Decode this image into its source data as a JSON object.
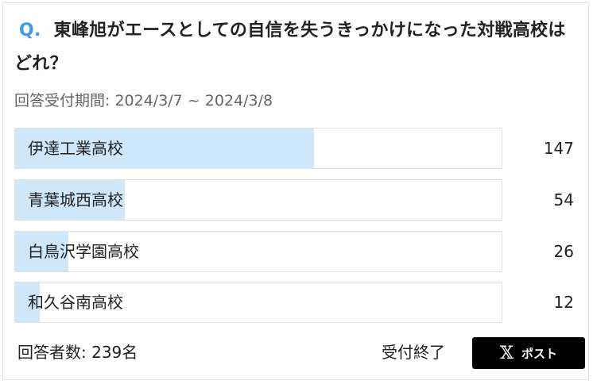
{
  "question": {
    "prefix": "Q.",
    "text": "東峰旭がエースとしての自信を失うきっかけになった対戦高校はどれ？"
  },
  "period": "回答受付期間: 2024/3/7 ~ 2024/3/8",
  "options": [
    {
      "label": "伊達工業高校",
      "votes": "147",
      "percent": 61.5
    },
    {
      "label": "青葉城西高校",
      "votes": "54",
      "percent": 22.6
    },
    {
      "label": "白鳥沢学園高校",
      "votes": "26",
      "percent": 10.9
    },
    {
      "label": "和久谷南高校",
      "votes": "12",
      "percent": 5.0
    }
  ],
  "footer": {
    "total": "回答者数: 239名",
    "status": "受付終了",
    "post_label": "ポスト",
    "post_icon": "x-logo-icon"
  },
  "colors": {
    "accent": "#3d9be9",
    "bar_fill": "#cfe7fb",
    "button": "#000000"
  }
}
